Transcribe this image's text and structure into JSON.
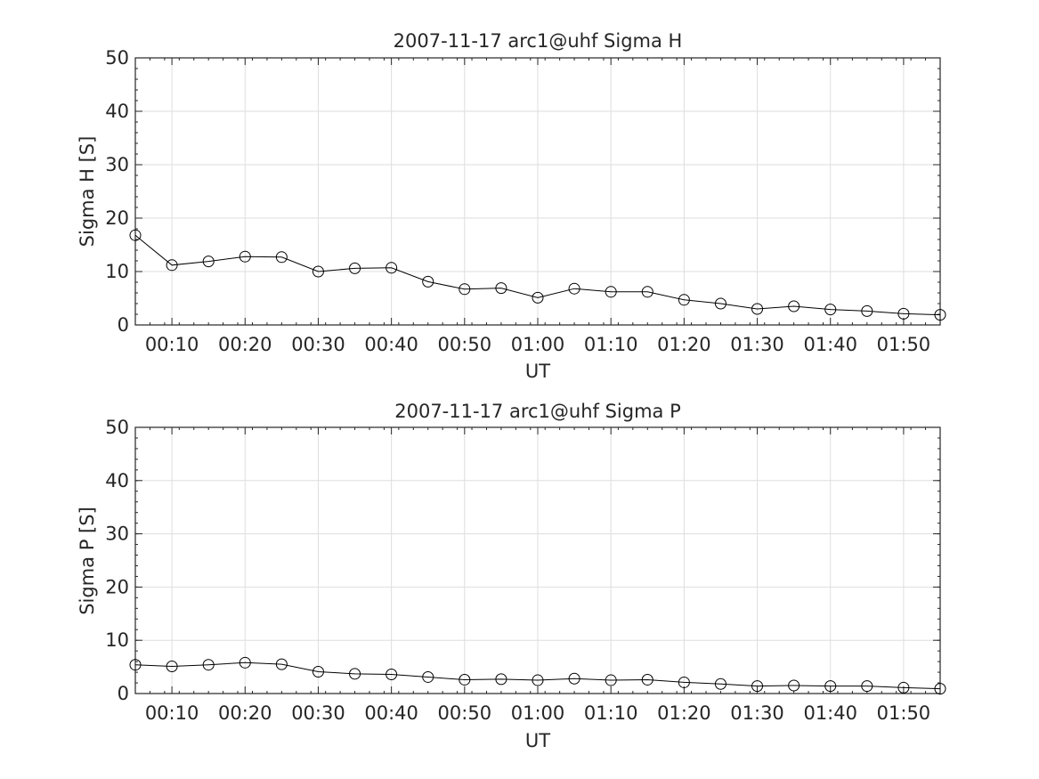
{
  "chart_data": [
    {
      "type": "line",
      "title": "2007-11-17  arc1@uhf Sigma H",
      "xlabel": "UT",
      "ylabel": "Sigma H [S]",
      "x_unit": "UT time (HH:MM)",
      "xlim": [
        "00:05",
        "01:55"
      ],
      "ylim": [
        0,
        50
      ],
      "xticks": [
        "00:10",
        "00:20",
        "00:30",
        "00:40",
        "00:50",
        "01:00",
        "01:10",
        "01:20",
        "01:30",
        "01:40",
        "01:50"
      ],
      "yticks": [
        0,
        10,
        20,
        30,
        40,
        50
      ],
      "grid": true,
      "marker": "open-circle",
      "line_color": "#000000",
      "x": [
        "00:05",
        "00:10",
        "00:15",
        "00:20",
        "00:25",
        "00:30",
        "00:35",
        "00:40",
        "00:45",
        "00:50",
        "00:55",
        "01:00",
        "01:05",
        "01:10",
        "01:15",
        "01:20",
        "01:25",
        "01:30",
        "01:35",
        "01:40",
        "01:45",
        "01:50",
        "01:55"
      ],
      "values": [
        16.8,
        11.2,
        11.9,
        12.8,
        12.7,
        10.0,
        10.6,
        10.7,
        8.1,
        6.7,
        6.9,
        5.1,
        6.8,
        6.2,
        6.2,
        4.7,
        4.0,
        3.0,
        3.5,
        2.9,
        2.6,
        2.1,
        1.9
      ]
    },
    {
      "type": "line",
      "title": "2007-11-17  arc1@uhf Sigma P",
      "xlabel": "UT",
      "ylabel": "Sigma P [S]",
      "x_unit": "UT time (HH:MM)",
      "xlim": [
        "00:05",
        "01:55"
      ],
      "ylim": [
        0,
        50
      ],
      "xticks": [
        "00:10",
        "00:20",
        "00:30",
        "00:40",
        "00:50",
        "01:00",
        "01:10",
        "01:20",
        "01:30",
        "01:40",
        "01:50"
      ],
      "yticks": [
        0,
        10,
        20,
        30,
        40,
        50
      ],
      "grid": true,
      "marker": "open-circle",
      "line_color": "#000000",
      "x": [
        "00:05",
        "00:10",
        "00:15",
        "00:20",
        "00:25",
        "00:30",
        "00:35",
        "00:40",
        "00:45",
        "00:50",
        "00:55",
        "01:00",
        "01:05",
        "01:10",
        "01:15",
        "01:20",
        "01:25",
        "01:30",
        "01:35",
        "01:40",
        "01:45",
        "01:50",
        "01:55"
      ],
      "values": [
        5.4,
        5.1,
        5.4,
        5.8,
        5.5,
        4.1,
        3.7,
        3.6,
        3.1,
        2.6,
        2.7,
        2.5,
        2.8,
        2.5,
        2.6,
        2.1,
        1.8,
        1.4,
        1.5,
        1.4,
        1.4,
        1.1,
        0.9
      ]
    }
  ]
}
